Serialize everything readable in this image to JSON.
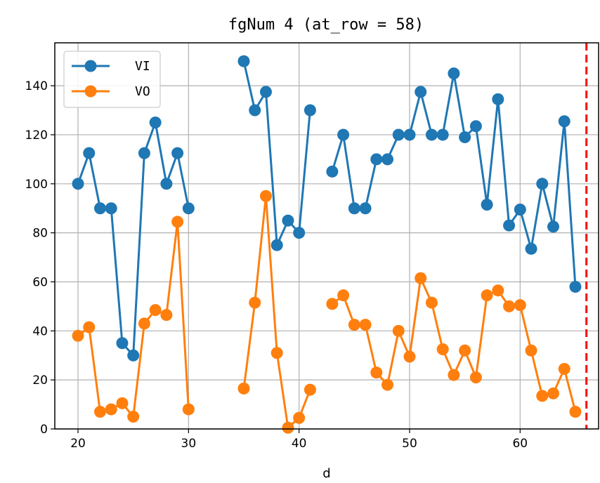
{
  "chart_data": {
    "type": "line",
    "title": "fgNum 4 (at_row = 58)",
    "xlabel": "d",
    "ylabel": "",
    "xlim": [
      17.9,
      67.1
    ],
    "ylim": [
      0,
      157.5
    ],
    "xticks": [
      20,
      30,
      40,
      50,
      60
    ],
    "yticks": [
      0,
      20,
      40,
      60,
      80,
      100,
      120,
      140
    ],
    "grid": true,
    "legend_position": "upper-left",
    "x": [
      20,
      21,
      22,
      23,
      24,
      25,
      26,
      27,
      28,
      29,
      30,
      35,
      36,
      37,
      38,
      39,
      40,
      41,
      43,
      44,
      45,
      46,
      47,
      48,
      49,
      50,
      51,
      52,
      53,
      54,
      55,
      56,
      57,
      58,
      59,
      60,
      61,
      62,
      63,
      64,
      65
    ],
    "series": [
      {
        "name": "VI",
        "color": "#1f77b4",
        "values": [
          100,
          112.5,
          90,
          90,
          35,
          30,
          112.5,
          125,
          100,
          112.5,
          90,
          150,
          130,
          137.5,
          75,
          85,
          80,
          130,
          105,
          120,
          90,
          90,
          110,
          110,
          120,
          120,
          137.5,
          120,
          120,
          145,
          119,
          123.5,
          91.5,
          134.5,
          83,
          89.5,
          73.5,
          100,
          82.5,
          125.5,
          58
        ]
      },
      {
        "name": "VO",
        "color": "#ff7f0e",
        "values": [
          38,
          41.5,
          7,
          8,
          10.5,
          5,
          43,
          48.5,
          46.5,
          84.5,
          8,
          16.5,
          51.5,
          95,
          31,
          0.5,
          4.5,
          16,
          51,
          54.5,
          42.5,
          42.5,
          23,
          18,
          40,
          29.5,
          61.5,
          51.5,
          32.5,
          22,
          32,
          21,
          54.5,
          56.5,
          50,
          50.5,
          32,
          13.5,
          14.5,
          24.5,
          7
        ]
      }
    ],
    "vline": {
      "x": 66,
      "color": "#ff0000",
      "style": "dashed"
    }
  }
}
